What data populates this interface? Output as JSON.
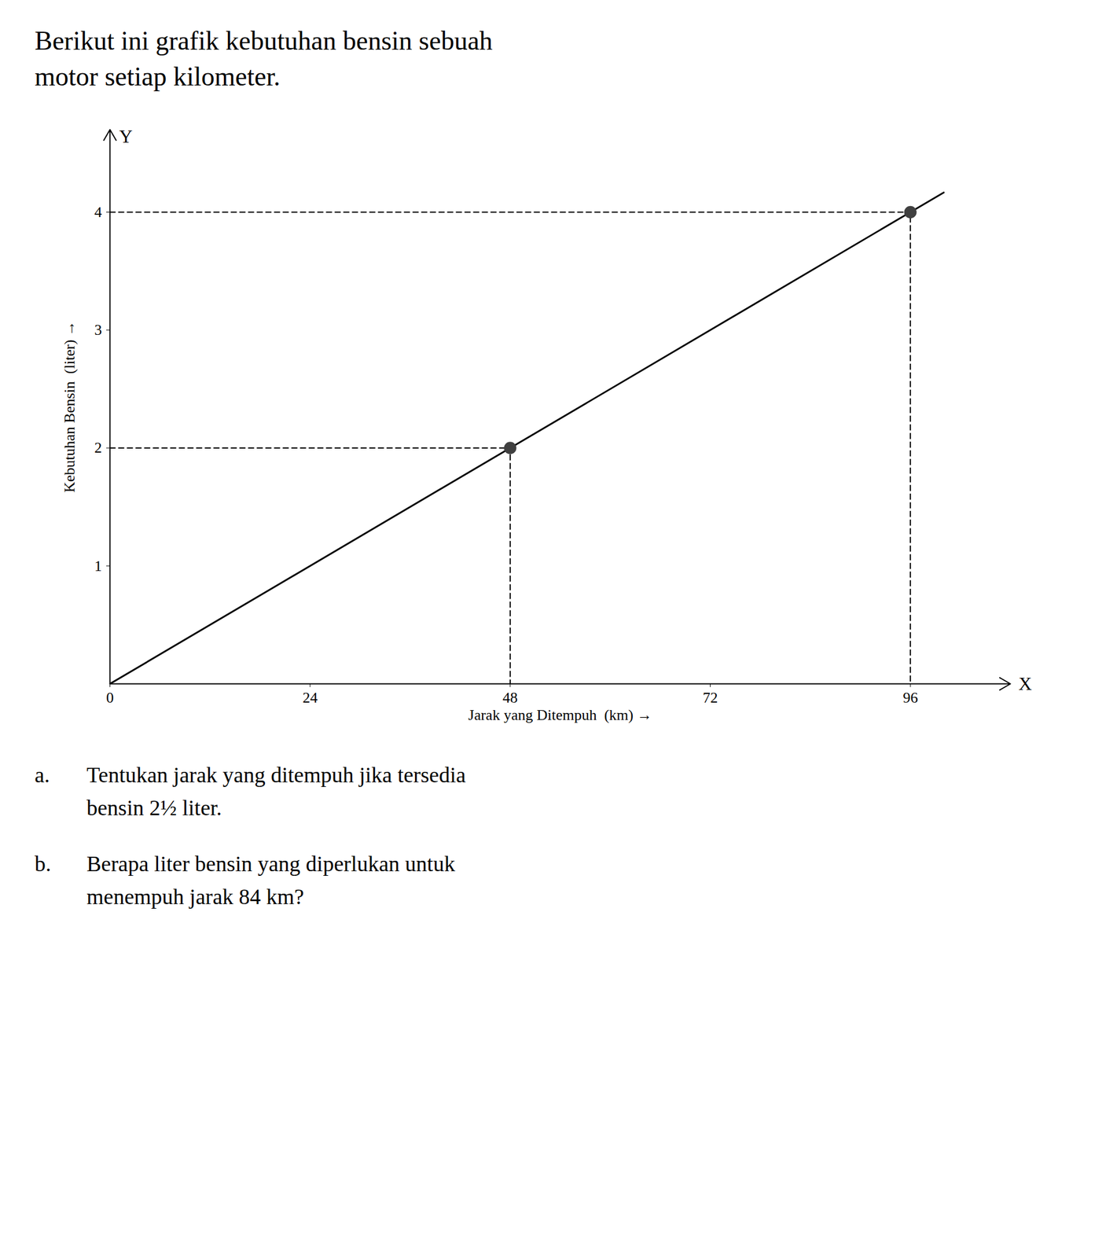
{
  "chart_data": {
    "type": "line",
    "title": "Berikut ini grafik kebutuhan bensin sebuah\nmotor setiap kilometer.",
    "x_label": "Jarak yang Ditempuh  (km)",
    "y_label": "Kebutuhan Bensin  (liter)",
    "annotations": [
      "X",
      "Y",
      "a.",
      "Tentukan jarak yang ditempuh jika tersedia\nbensin 2½ liter.",
      "b.",
      "Berapa liter bensin yang diperlukan untuk\nmenempuh jarak 84 km?"
    ],
    "series": [
      {
        "type": "line",
        "x": [
          0,
          100
        ],
        "values": [
          0,
          4.166666666666667
        ],
        "color": "#000000",
        "line_style": "solid"
      },
      {
        "type": "line",
        "x": [
          0,
          48,
          48
        ],
        "values": [
          2,
          2,
          0
        ],
        "color": "#000000",
        "line_style": "dashed"
      },
      {
        "type": "line",
        "x": [
          0,
          96,
          96
        ],
        "values": [
          4,
          4,
          0
        ],
        "color": "#000000",
        "line_style": "dashed"
      },
      {
        "type": "scatter",
        "x": [
          48,
          96
        ],
        "values": [
          2,
          4
        ],
        "color": "#404040",
        "marker": "circle"
      }
    ],
    "xlim": [
      0,
      108
    ],
    "ylim": [
      0,
      4.7
    ],
    "xticks": [
      0,
      24,
      48,
      72,
      96
    ],
    "yticks": [
      1,
      2,
      3,
      4
    ],
    "grid": false
  }
}
